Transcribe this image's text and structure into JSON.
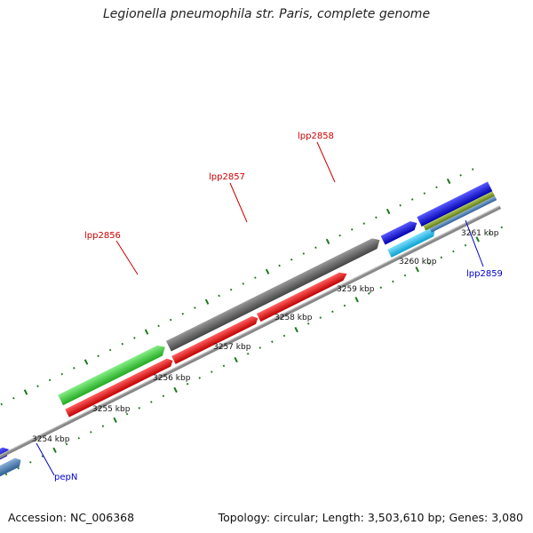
{
  "title": "Legionella pneumophila str. Paris, complete genome",
  "accession_text": "Accession: NC_006368",
  "topology_text": "Topology: circular; Length: 3,503,610 bp; Genes: 3,080",
  "scale_labels": [
    "3254 kbp",
    "3255 kbp",
    "3256 kbp",
    "3257 kbp",
    "3258 kbp",
    "3259 kbp",
    "3260 kbp",
    "3261 kbp"
  ],
  "genes": [
    {
      "label": "lpp2856",
      "color": "#cc0000"
    },
    {
      "label": "lpp2857",
      "color": "#cc0000"
    },
    {
      "label": "lpp2858",
      "color": "#cc0000"
    },
    {
      "label": "lpp2859",
      "color": "#0000cc"
    },
    {
      "label": "pepN",
      "color": "#0000cc"
    }
  ],
  "colors": {
    "tick": "#1a7a1a",
    "backbone": "#888888",
    "blue": "#1010e0",
    "steelblue": "#4a7fb8",
    "lightblue": "#19c2f0",
    "green": "#44cc44",
    "red": "#ee1111",
    "gray": "#666666",
    "olive": "#7a9a2a"
  }
}
